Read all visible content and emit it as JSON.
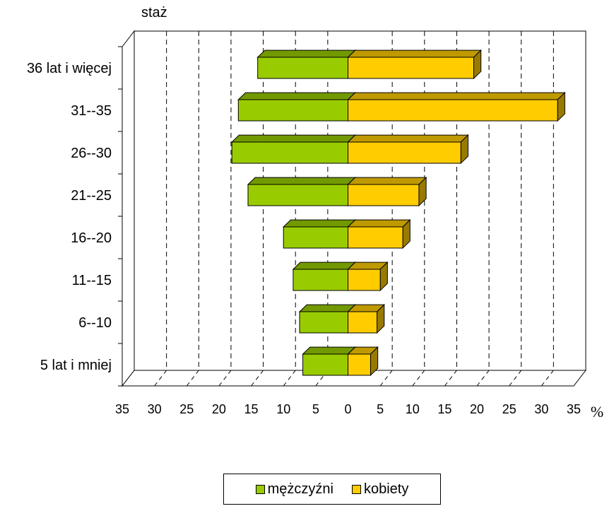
{
  "chart_data": {
    "type": "bar",
    "orientation": "horizontal",
    "title": "staż",
    "xlabel": "%",
    "categories": [
      "5 lat i mniej",
      "6--10",
      "11--15",
      "16--20",
      "21--25",
      "26--30",
      "31--35",
      "36 lat i więcej"
    ],
    "series": [
      {
        "name": "mężczyźni",
        "color": "#99CC00",
        "values": [
          7,
          7.5,
          8.5,
          10,
          15.5,
          18,
          17,
          14
        ]
      },
      {
        "name": "kobiety",
        "color": "#FFCC00",
        "values": [
          3.5,
          4.5,
          5,
          8.5,
          11,
          17.5,
          32.5,
          19.5
        ]
      }
    ],
    "xlim": [
      -35,
      35
    ],
    "x_tick_labels": [
      "35",
      "30",
      "25",
      "20",
      "15",
      "10",
      "5",
      "0",
      "5",
      "10",
      "15",
      "20",
      "25",
      "30",
      "35"
    ],
    "grid": "vertical dashed",
    "legend_position": "bottom"
  }
}
